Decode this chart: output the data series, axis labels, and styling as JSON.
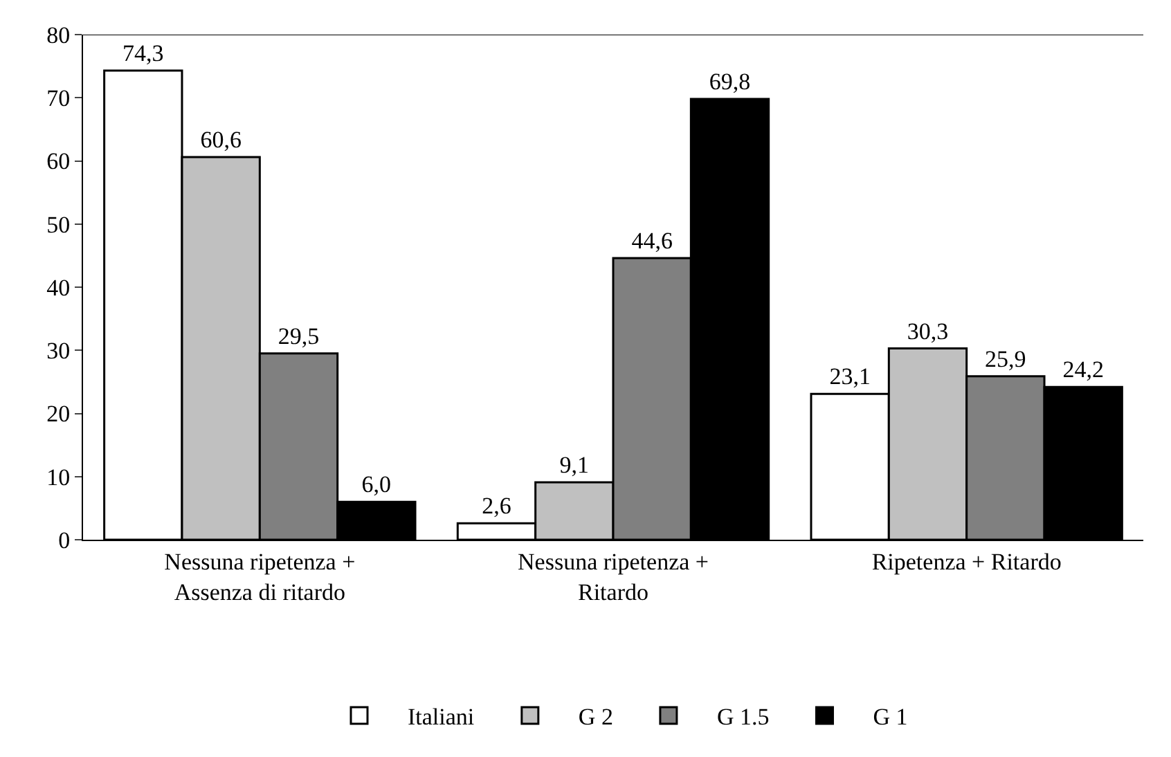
{
  "chart_data": {
    "type": "bar",
    "categories": [
      "Nessuna ripetenza +\nAssenza di ritardo",
      "Nessuna ripetenza +\nRitardo",
      "Ripetenza + Ritardo"
    ],
    "series": [
      {
        "name": "Italiani",
        "color": "#ffffff",
        "values": [
          74.3,
          2.6,
          23.1
        ],
        "value_labels": [
          "74,3",
          "2,6",
          "23,1"
        ]
      },
      {
        "name": "G 2",
        "color": "#c0c0c0",
        "values": [
          60.6,
          9.1,
          30.3
        ],
        "value_labels": [
          "60,6",
          "9,1",
          "30,3"
        ]
      },
      {
        "name": "G 1.5",
        "color": "#808080",
        "values": [
          29.5,
          44.6,
          25.9
        ],
        "value_labels": [
          "29,5",
          "44,6",
          "25,9"
        ]
      },
      {
        "name": "G 1",
        "color": "#000000",
        "values": [
          6.0,
          69.8,
          24.2
        ],
        "value_labels": [
          "6,0",
          "69,8",
          "24,2"
        ]
      }
    ],
    "ylim": [
      0,
      80
    ],
    "yticks": [
      0,
      10,
      20,
      30,
      40,
      50,
      60,
      70,
      80
    ],
    "grid": false,
    "legend": "bottom",
    "ref_lines": [
      {
        "axis": "y",
        "value": 80
      }
    ]
  }
}
